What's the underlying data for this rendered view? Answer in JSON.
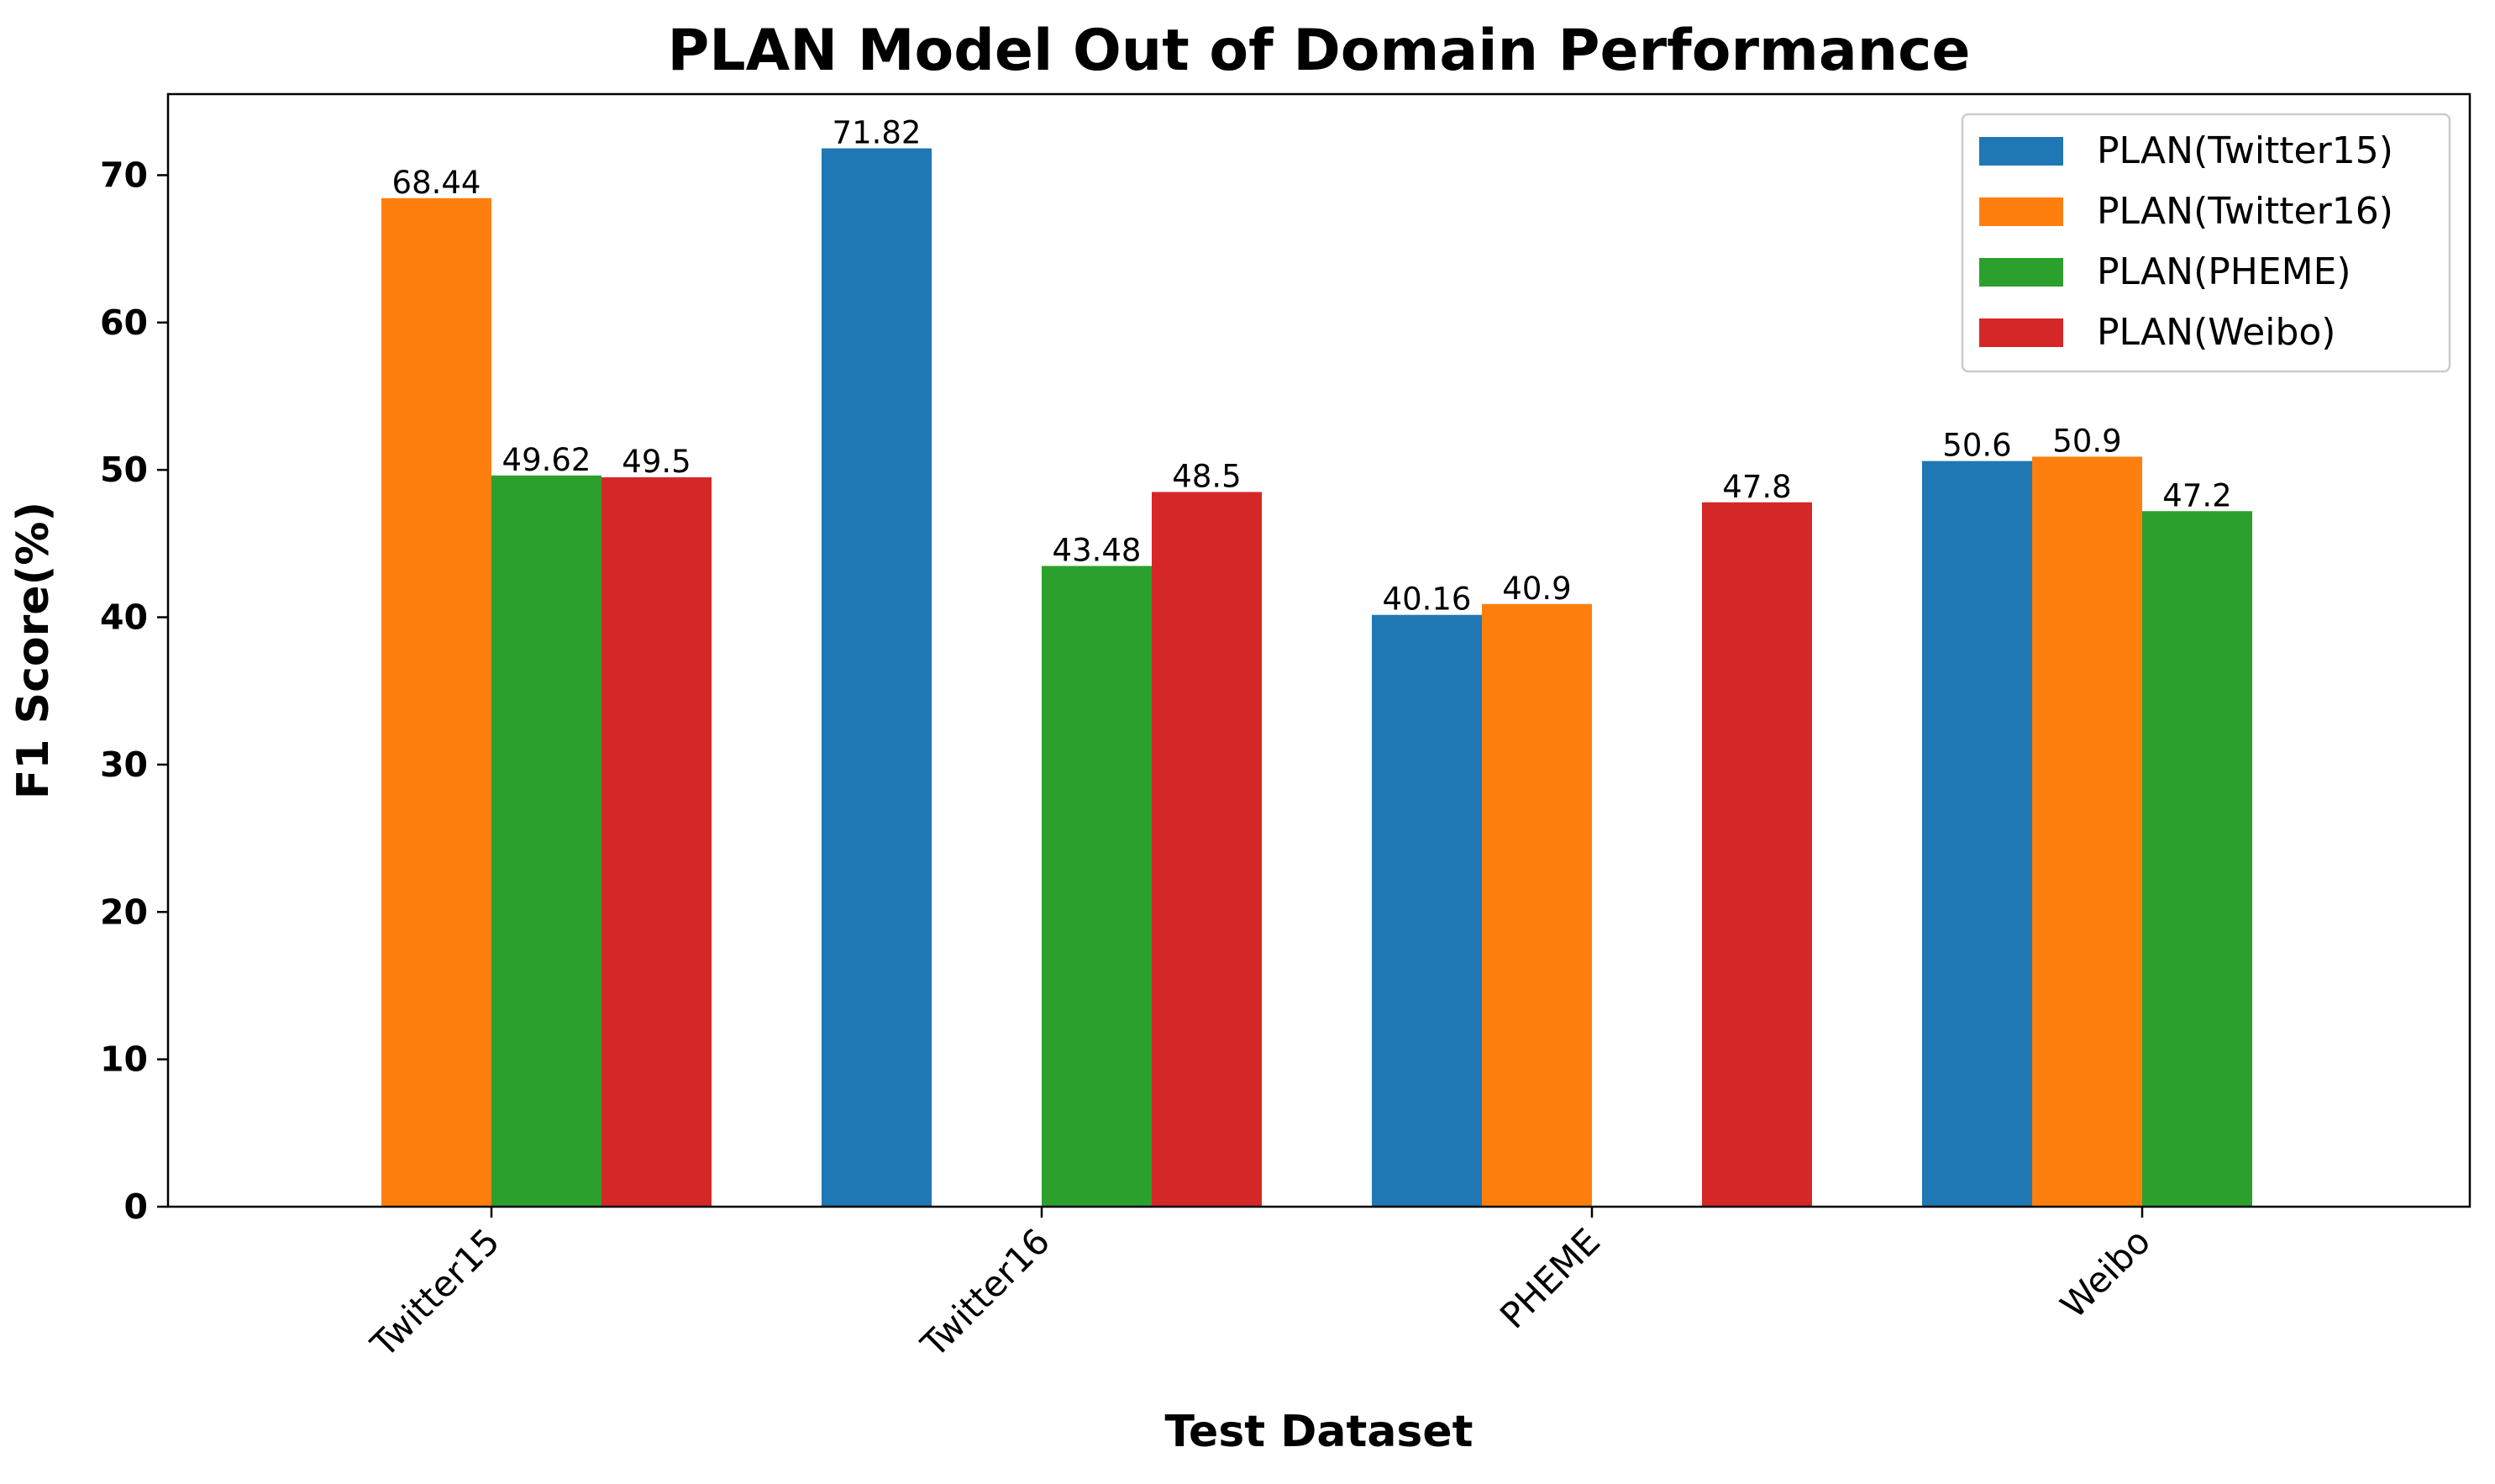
{
  "chart_data": {
    "type": "bar",
    "title": "PLAN Model Out of Domain Performance",
    "xlabel": "Test Dataset",
    "ylabel": "F1 Score(%)",
    "ylim": [
      0,
      75.5
    ],
    "yticks": [
      0,
      10,
      20,
      30,
      40,
      50,
      60,
      70
    ],
    "categories": [
      "Twitter15",
      "Twitter16",
      "PHEME",
      "Weibo"
    ],
    "legend_position": "top-right",
    "grid": false,
    "series": [
      {
        "name": "PLAN(Twitter15)",
        "color": "#1f77b4",
        "values": [
          null,
          71.82,
          40.16,
          50.6
        ],
        "labels": [
          "",
          "71.82",
          "40.16",
          "50.6"
        ]
      },
      {
        "name": "PLAN(Twitter16)",
        "color": "#ff7f0e",
        "values": [
          68.44,
          null,
          40.9,
          50.9
        ],
        "labels": [
          "68.44",
          "",
          "40.9",
          "50.9"
        ]
      },
      {
        "name": "PLAN(PHEME)",
        "color": "#2ca02c",
        "values": [
          49.62,
          43.48,
          null,
          47.2
        ],
        "labels": [
          "49.62",
          "43.48",
          "",
          "47.2"
        ]
      },
      {
        "name": "PLAN(Weibo)",
        "color": "#d62728",
        "values": [
          49.5,
          48.5,
          47.8,
          null
        ],
        "labels": [
          "49.5",
          "48.5",
          "47.8",
          ""
        ]
      }
    ]
  }
}
